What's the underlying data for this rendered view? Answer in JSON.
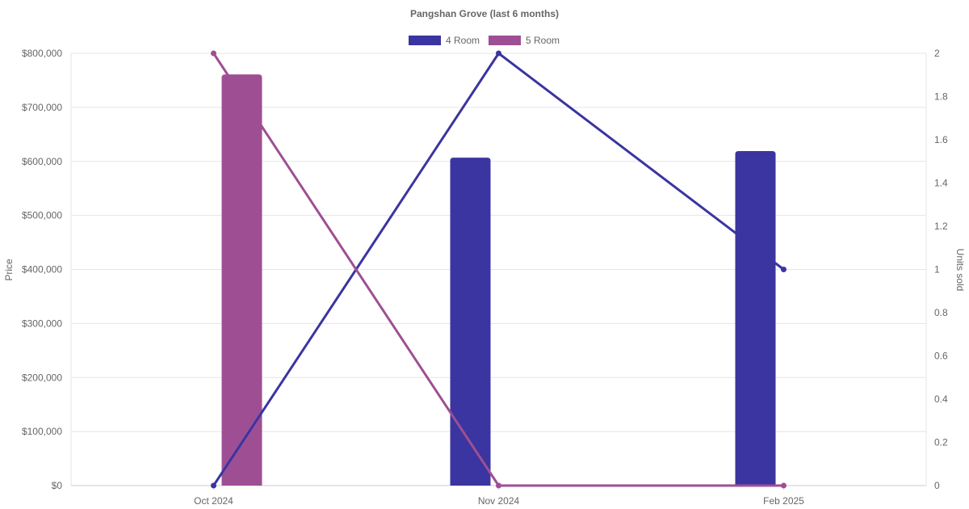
{
  "chart_data": {
    "type": "bar",
    "title": "Pangshan Grove (last 6 months)",
    "categories": [
      "Oct 2024",
      "Nov 2024",
      "Feb 2025"
    ],
    "y_left": {
      "label": "Price",
      "ylim": [
        0,
        800000
      ],
      "ticks": [
        "$0",
        "$100,000",
        "$200,000",
        "$300,000",
        "$400,000",
        "$500,000",
        "$600,000",
        "$700,000",
        "$800,000"
      ]
    },
    "y_right": {
      "label": "Units sold",
      "ylim": [
        0,
        2
      ],
      "ticks": [
        "0",
        "0.2",
        "0.4",
        "0.6",
        "0.8",
        "1",
        "1.2",
        "1.4",
        "1.6",
        "1.8",
        "2"
      ]
    },
    "series": [
      {
        "name": "4 Room",
        "color": "#3a35a0",
        "price": [
          null,
          607000,
          619000
        ],
        "units": [
          0,
          2,
          1
        ]
      },
      {
        "name": "5 Room",
        "color": "#9e4f94",
        "price": [
          761000,
          null,
          null
        ],
        "units": [
          2,
          0,
          0
        ]
      }
    ],
    "grid": true,
    "legend": "top-center"
  }
}
